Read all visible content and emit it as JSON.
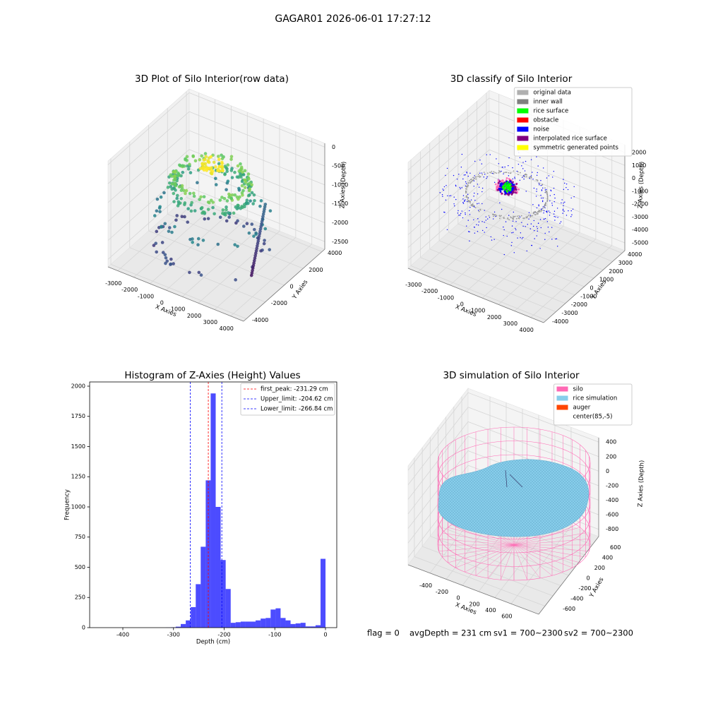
{
  "title": "GAGAR01 2026-06-01 17:27:12",
  "footer": [
    "flag = 0",
    "avgDepth = 231 cm",
    "sv1 = 700~2300",
    "sv2 = 700~2300"
  ],
  "chart_data": [
    {
      "type": "scatter3d",
      "title": "3D Plot of Silo Interior(row data)",
      "xlabel": "X Axies",
      "ylabel": "Y Axies",
      "zlabel": "Z Axies (Depth)",
      "xlim": [
        -3600,
        4800
      ],
      "ylim": [
        -4300,
        4300
      ],
      "zlim": [
        -2700,
        100
      ],
      "xticks": [
        -3000,
        -2000,
        -1000,
        0,
        1000,
        2000,
        3000,
        4000
      ],
      "yticks": [
        -4000,
        -2000,
        0,
        2000,
        4000
      ],
      "zticks": [
        -2500,
        -2000,
        -1500,
        -1000,
        -500,
        0
      ]
    },
    {
      "type": "scatter3d",
      "title": "3D classify of Silo Interior",
      "xlabel": "X Axies",
      "ylabel": "Y Axies",
      "zlabel": "Z Axies (Depth)",
      "xlim": [
        -3600,
        4800
      ],
      "ylim": [
        -4300,
        4300
      ],
      "zlim": [
        -5600,
        2600
      ],
      "xticks": [
        -3000,
        -2000,
        -1000,
        0,
        1000,
        2000,
        3000,
        4000
      ],
      "yticks": [
        -4000,
        -3000,
        -2000,
        -1000,
        0,
        1000,
        2000,
        3000,
        4000
      ],
      "zticks": [
        -5000,
        -4000,
        -3000,
        -2000,
        -1000,
        0,
        1000,
        2000
      ],
      "legend_loc": "upper right",
      "legend_entries": [
        {
          "name": "original data",
          "color": "#b0b0b0"
        },
        {
          "name": "inner wall",
          "color": "#808080"
        },
        {
          "name": "rice surface",
          "color": "#00ff00"
        },
        {
          "name": "obstacle",
          "color": "#ff0000"
        },
        {
          "name": "noise",
          "color": "#0000ff"
        },
        {
          "name": "interpolated rice surface",
          "color": "#800080"
        },
        {
          "name": "symmetric generated points",
          "color": "#ffff00"
        }
      ]
    },
    {
      "type": "histogram",
      "title": "Histogram of Z-Axies (Height) Values",
      "xlabel": "Depth (cm)",
      "ylabel": "Frequency",
      "color": "#0000ff",
      "alpha": 0.7,
      "bins": [
        -443.4,
        -433.5,
        -423.7,
        -413.8,
        -404.0,
        -394.1,
        -384.3,
        -374.4,
        -364.6,
        -354.7,
        -344.8,
        -335.0,
        -325.1,
        -315.3,
        -305.4,
        -295.6,
        -285.7,
        -275.8,
        -266.0,
        -256.1,
        -246.3,
        -236.4,
        -226.6,
        -216.7,
        -206.9,
        -197.0,
        -187.1,
        -177.3,
        -167.4,
        -157.6,
        -147.7,
        -137.9,
        -128.0,
        -118.1,
        -108.3,
        -98.4,
        -88.6,
        -78.7,
        -68.9,
        -59.0,
        -49.2,
        -39.3,
        -29.4,
        -19.6,
        -9.7,
        0.1
      ],
      "counts": [
        0,
        0,
        0,
        0,
        0,
        0,
        0,
        0,
        0,
        0,
        0,
        0,
        0,
        1,
        3,
        8,
        30,
        60,
        170,
        360,
        670,
        1220,
        1940,
        1000,
        560,
        320,
        40,
        45,
        50,
        50,
        50,
        60,
        75,
        80,
        150,
        160,
        80,
        60,
        30,
        35,
        40,
        10,
        10,
        20,
        570
      ],
      "xlim": [
        -465.5,
        22.3
      ],
      "ylim": [
        0,
        2035
      ],
      "xticks": [
        -400,
        -300,
        -200,
        -100,
        0
      ],
      "yticks": [
        0,
        250,
        500,
        750,
        1000,
        1250,
        1500,
        1750,
        2000
      ],
      "legend_loc": "upper right",
      "lines": [
        {
          "name": "first_peak: -231.29 cm",
          "value": -231.29,
          "color": "#ff0000"
        },
        {
          "name": "Upper_limit: -204.62 cm",
          "value": -204.62,
          "color": "#0000ff"
        },
        {
          "name": "Lower_limit: -266.84 cm",
          "value": -266.84,
          "color": "#0000ff"
        }
      ]
    },
    {
      "type": "surface3d",
      "title": "3D simulation of Silo Interior",
      "xlabel": "X Axies",
      "ylabel": "Y Axies",
      "zlabel": "Z Axies (Depth)",
      "xlim": [
        -670,
        940
      ],
      "ylim": [
        -760,
        760
      ],
      "zlim": [
        -900,
        460
      ],
      "xticks": [
        -400,
        -200,
        0,
        200,
        400,
        600
      ],
      "yticks": [
        -600,
        -400,
        -200,
        0,
        200,
        400,
        600
      ],
      "zticks": [
        -800,
        -600,
        -400,
        -200,
        0,
        200,
        400
      ],
      "legend_loc": "upper right",
      "legend_entries": [
        {
          "name": "silo",
          "color": "#ff69b4"
        },
        {
          "name": "rice simulation",
          "color": "#87ceeb"
        },
        {
          "name": "auger",
          "color": "#ff4500"
        },
        {
          "name": "center(85,-5)",
          "color": "#ffffff"
        }
      ]
    }
  ]
}
